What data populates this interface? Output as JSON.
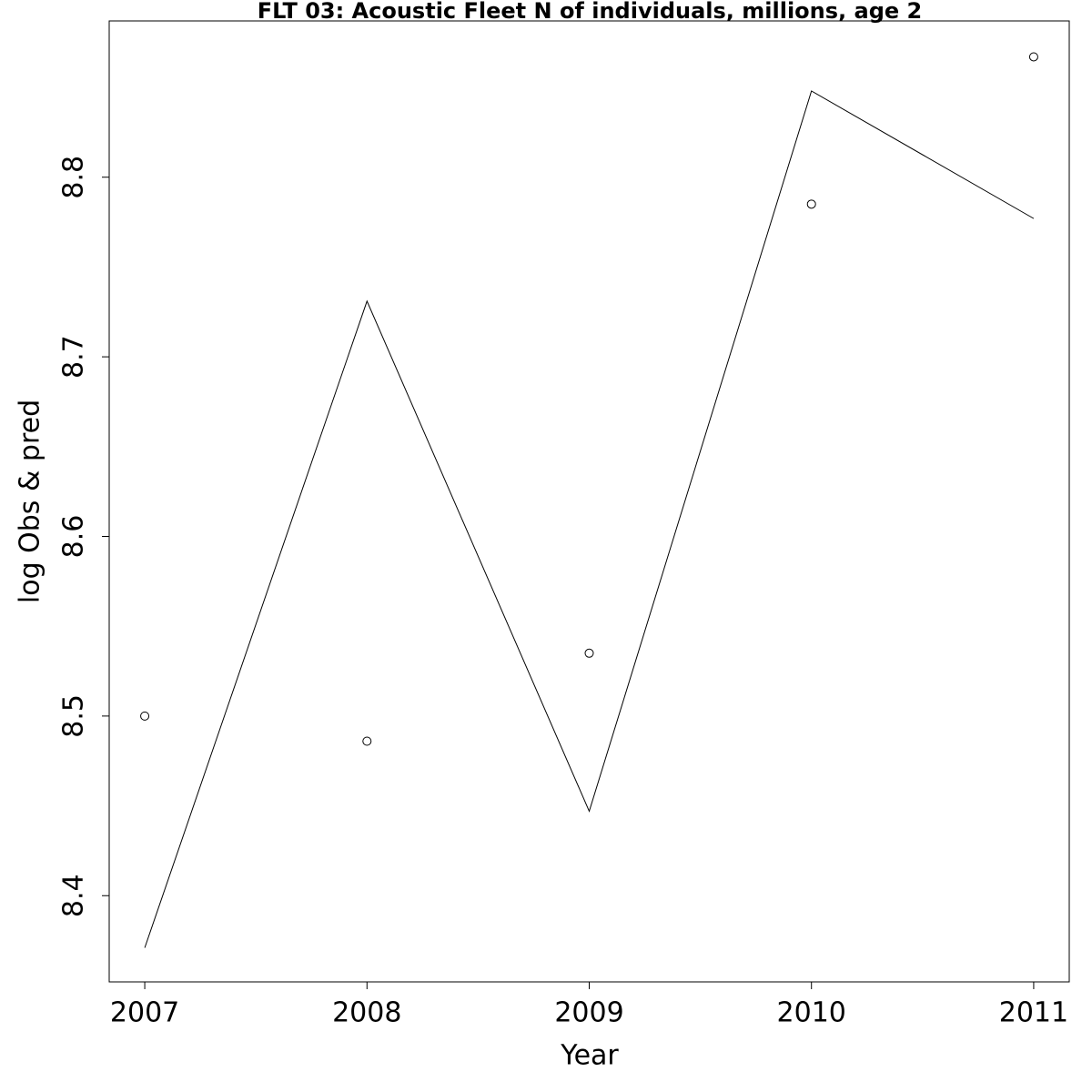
{
  "chart_data": {
    "type": "line",
    "title": "FLT 03: Acoustic Fleet  N of individuals, millions, age 2",
    "x_label": "Year",
    "y_label": "log Obs & pred",
    "x": [
      2007,
      2008,
      2009,
      2010,
      2011
    ],
    "series": [
      {
        "style": "line",
        "color": "#000000",
        "values": [
          8.371,
          8.731,
          8.447,
          8.848,
          8.777
        ]
      },
      {
        "style": "points",
        "color": "#000000",
        "values": [
          8.5,
          8.486,
          8.535,
          8.785,
          8.867
        ]
      }
    ],
    "xlim": [
      2006.84,
      2011.16
    ],
    "xticks": [
      2007,
      2008,
      2009,
      2010,
      2011
    ],
    "ylim": [
      8.352,
      8.887
    ],
    "yticks": [
      8.4,
      8.5,
      8.6,
      8.7,
      8.8
    ]
  }
}
